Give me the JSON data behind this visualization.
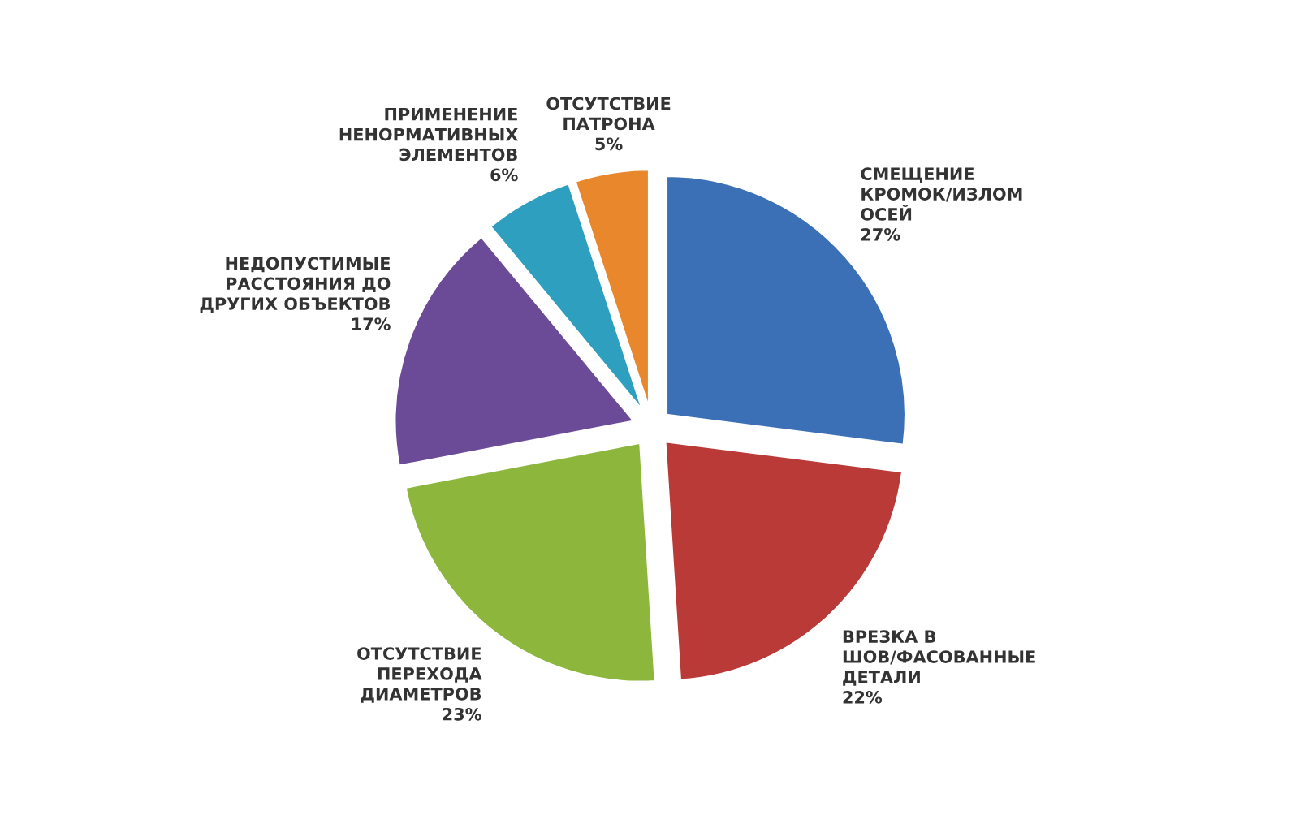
{
  "chart_data": {
    "type": "pie",
    "categories": [
      "СМЕЩЕНИЕ\nКРОМОК/ИЗЛОМ\nОСЕЙ",
      "ВРЕЗКА В\nШОВ/ФАСОВАННЫЕ\nДЕТАЛИ",
      "ОТСУТСТВИЕ\nПЕРЕХОДА\nДИАМЕТРОВ",
      "НЕДОПУСТИМЫЕ\nРАССТОЯНИЯ ДО\nДРУГИХ ОБЪЕКТОВ",
      "ПРИМЕНЕНИЕ\nНЕНОРМАТИВНЫХ\nЭЛЕМЕНТОВ",
      "ОТСУТСТВИЕ\nПАТРОНА"
    ],
    "values": [
      27,
      22,
      23,
      17,
      6,
      5
    ],
    "value_labels": [
      "27%",
      "22%",
      "23%",
      "17%",
      "6%",
      "5%"
    ],
    "colors": [
      "#3b6fb6",
      "#b93a36",
      "#8db63d",
      "#6b4b97",
      "#2f9fc0",
      "#e8872b"
    ],
    "legend": false
  }
}
